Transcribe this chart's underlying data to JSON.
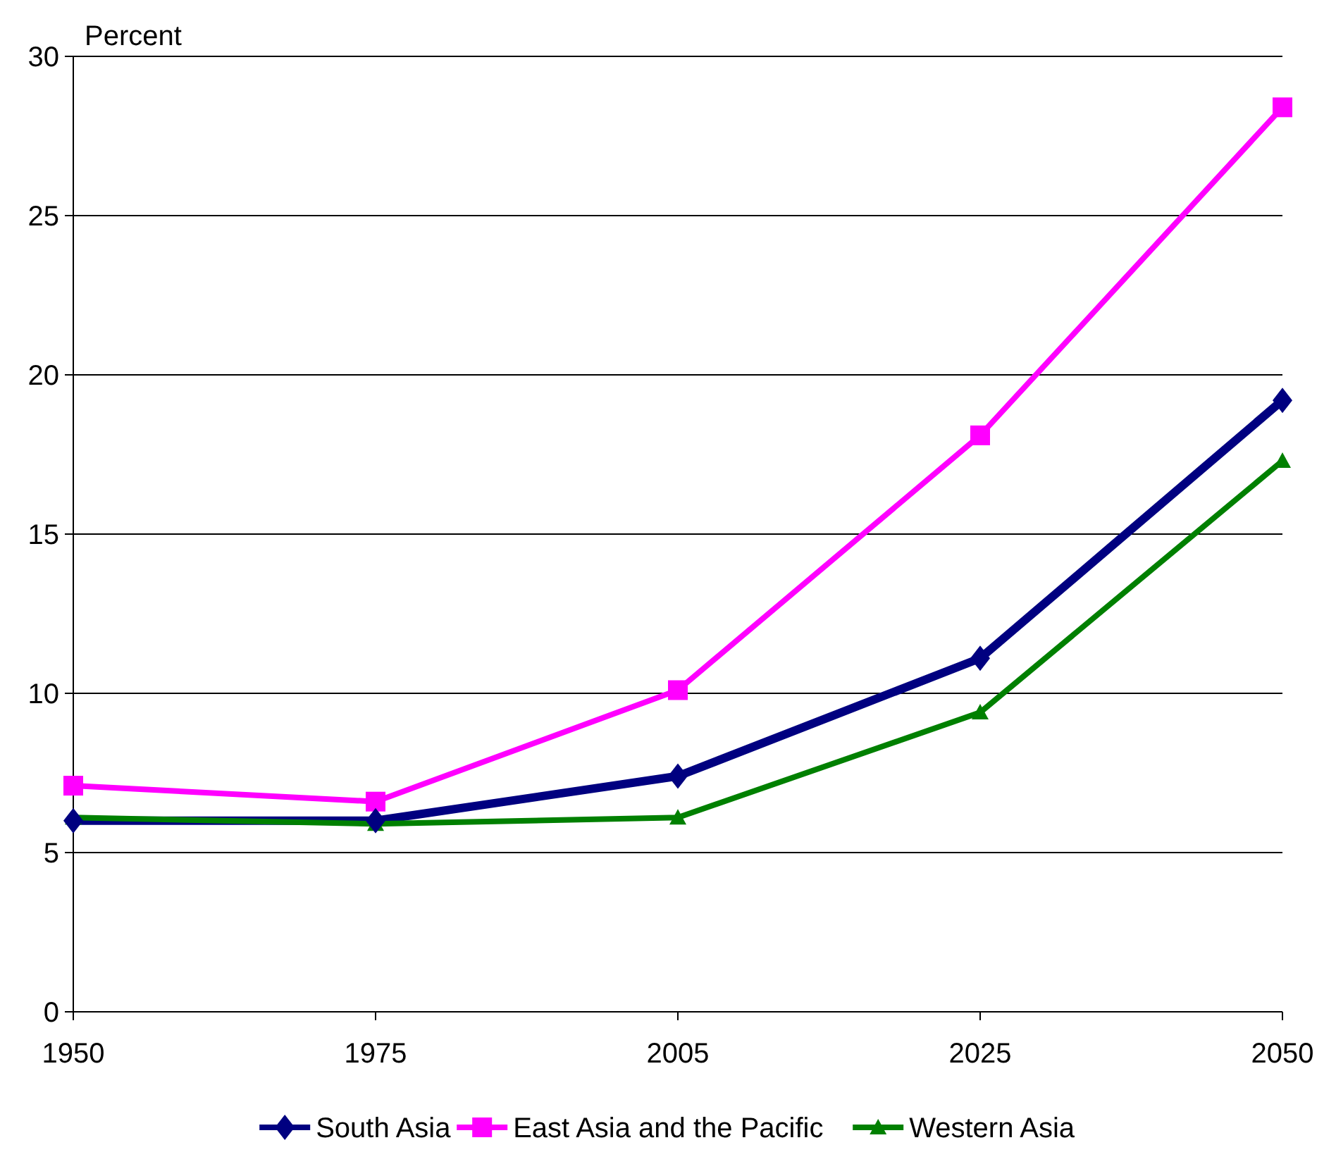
{
  "chart_data": {
    "type": "line",
    "ylabel": "Percent",
    "categories": [
      "1950",
      "1975",
      "2005",
      "2025",
      "2050"
    ],
    "series": [
      {
        "name": "South Asia",
        "color": "#000080",
        "marker": "diamond",
        "values": [
          6.0,
          6.0,
          7.4,
          11.1,
          19.2
        ]
      },
      {
        "name": "East Asia and the Pacific",
        "color": "#ff00ff",
        "marker": "square",
        "values": [
          7.1,
          6.6,
          10.1,
          18.1,
          28.4
        ]
      },
      {
        "name": "Western Asia",
        "color": "#008000",
        "marker": "triangle",
        "values": [
          6.1,
          5.9,
          6.1,
          9.4,
          17.3
        ]
      }
    ],
    "ylim": [
      0,
      30
    ],
    "yticks": [
      0,
      5,
      10,
      15,
      20,
      25,
      30
    ],
    "grid": "y",
    "legend": "bottom",
    "line_style": "solid"
  }
}
